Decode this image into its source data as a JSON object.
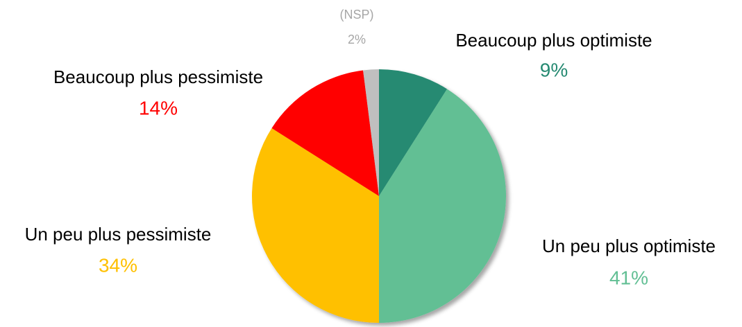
{
  "chart_data": {
    "type": "pie",
    "categories": [
      "Beaucoup plus optimiste",
      "Un peu plus optimiste",
      "Un peu plus pessimiste",
      "Beaucoup plus pessimiste",
      "(NSP)"
    ],
    "values": [
      9,
      41,
      34,
      14,
      2
    ],
    "value_labels": [
      "9%",
      "41%",
      "34%",
      "14%",
      "2%"
    ],
    "colors": [
      "#268a72",
      "#62bf94",
      "#ffc000",
      "#ff0000",
      "#bfbfbf"
    ]
  }
}
